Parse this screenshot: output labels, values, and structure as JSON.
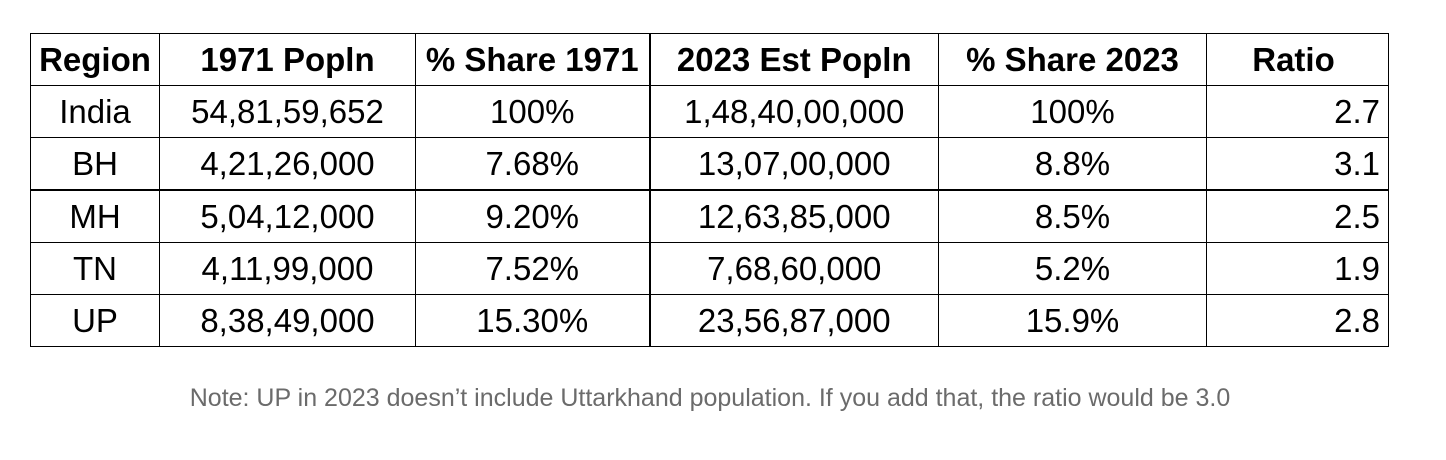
{
  "table": {
    "headers": [
      "Region",
      "1971 Popln",
      "% Share 1971",
      "2023 Est Popln",
      "% Share 2023",
      "Ratio"
    ],
    "rows": [
      [
        "India",
        "54,81,59,652",
        "100%",
        "1,48,40,00,000",
        "100%",
        "2.7"
      ],
      [
        "BH",
        "4,21,26,000",
        "7.68%",
        "13,07,00,000",
        "8.8%",
        "3.1"
      ],
      [
        "MH",
        "5,04,12,000",
        "9.20%",
        "12,63,85,000",
        "8.5%",
        "2.5"
      ],
      [
        "TN",
        "4,11,99,000",
        "7.52%",
        "7,68,60,000",
        "5.2%",
        "1.9"
      ],
      [
        "UP",
        "8,38,49,000",
        "15.30%",
        "23,56,87,000",
        "15.9%",
        "2.8"
      ]
    ]
  },
  "note": "Note: UP in 2023 doesn’t include Uttarkhand population. If you add that, the ratio would be 3.0"
}
